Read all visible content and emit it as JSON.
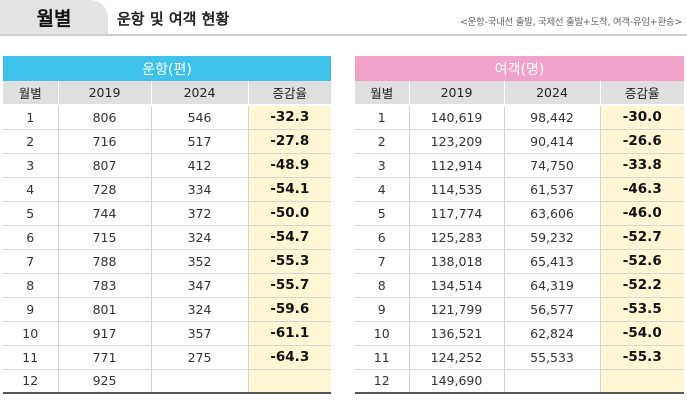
{
  "header": {
    "tab_label": "월별",
    "title": "운항 및 여객 현황",
    "note": "<운항-국내선 출발, 국제선 출발+도착, 여객-유임+환승>"
  },
  "operations": {
    "group_label": "운항(편)",
    "columns": [
      "월별",
      "2019",
      "2024",
      "증감율"
    ],
    "rows": [
      [
        "1",
        "806",
        "546",
        "-32.3"
      ],
      [
        "2",
        "716",
        "517",
        "-27.8"
      ],
      [
        "3",
        "807",
        "412",
        "-48.9"
      ],
      [
        "4",
        "728",
        "334",
        "-54.1"
      ],
      [
        "5",
        "744",
        "372",
        "-50.0"
      ],
      [
        "6",
        "715",
        "324",
        "-54.7"
      ],
      [
        "7",
        "788",
        "352",
        "-55.3"
      ],
      [
        "8",
        "783",
        "347",
        "-55.7"
      ],
      [
        "9",
        "801",
        "324",
        "-59.6"
      ],
      [
        "10",
        "917",
        "357",
        "-61.1"
      ],
      [
        "11",
        "771",
        "275",
        "-64.3"
      ],
      [
        "12",
        "925",
        "",
        ""
      ]
    ]
  },
  "passengers": {
    "group_label": "여객(명)",
    "columns": [
      "월별",
      "2019",
      "2024",
      "증감율"
    ],
    "rows": [
      [
        "1",
        "140,619",
        "98,442",
        "-30.0"
      ],
      [
        "2",
        "123,209",
        "90,414",
        "-26.6"
      ],
      [
        "3",
        "112,914",
        "74,750",
        "-33.8"
      ],
      [
        "4",
        "114,535",
        "61,537",
        "-46.3"
      ],
      [
        "5",
        "117,774",
        "63,606",
        "-46.0"
      ],
      [
        "6",
        "125,283",
        "59,232",
        "-52.7"
      ],
      [
        "7",
        "138,018",
        "65,413",
        "-52.6"
      ],
      [
        "8",
        "134,514",
        "64,319",
        "-52.2"
      ],
      [
        "9",
        "121,799",
        "56,577",
        "-53.5"
      ],
      [
        "10",
        "136,521",
        "62,824",
        "-54.0"
      ],
      [
        "11",
        "124,252",
        "55,533",
        "-55.3"
      ],
      [
        "12",
        "149,690",
        "",
        ""
      ]
    ]
  }
}
